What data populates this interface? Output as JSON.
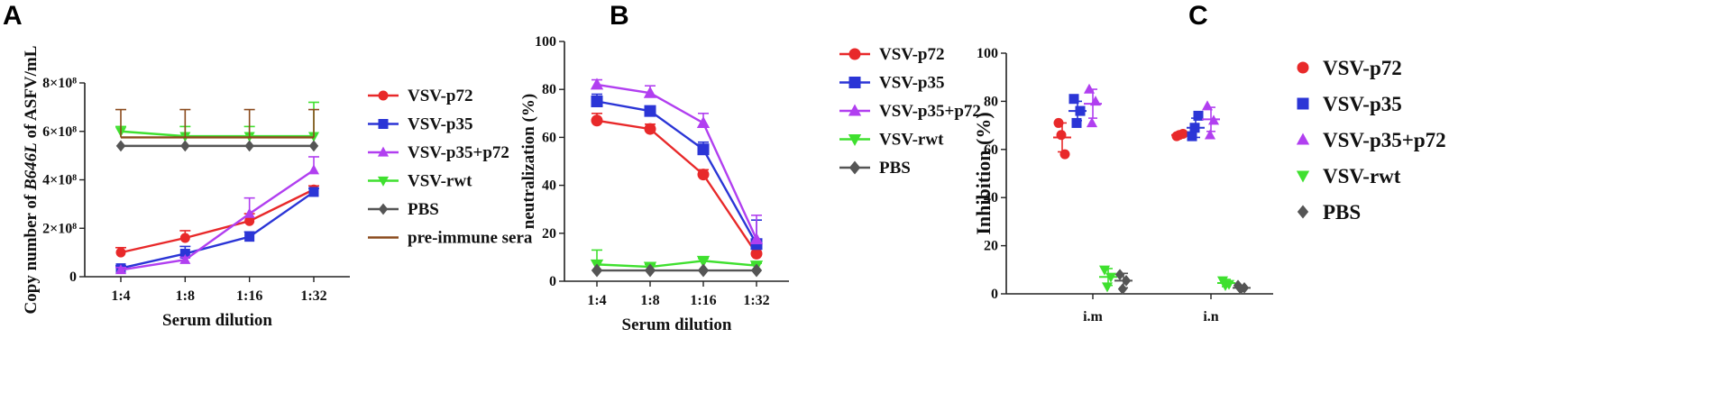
{
  "chart_data": [
    {
      "panel": "A",
      "type": "line",
      "title": "",
      "xlabel": "Serum dilution",
      "ylabel_parts": [
        "Copy number of ",
        "B646L",
        " of ASFV/mL"
      ],
      "categories": [
        "1:4",
        "1:8",
        "1:16",
        "1:32"
      ],
      "ylim": [
        0,
        800000000
      ],
      "yticks": [
        0,
        200000000,
        400000000,
        600000000,
        800000000
      ],
      "ytick_labels": [
        "0",
        "2×10⁸",
        "4×10⁸",
        "6×10⁸",
        "8×10⁸"
      ],
      "legend_position": "right",
      "series": [
        {
          "name": "VSV-p72",
          "color": "#e8292a",
          "marker": "circle",
          "values": [
            100000000,
            160000000,
            230000000,
            360000000
          ],
          "errors": [
            20000000,
            30000000,
            30000000,
            15000000
          ]
        },
        {
          "name": "VSV-p35",
          "color": "#2b35d6",
          "marker": "square",
          "values": [
            35000000,
            95000000,
            165000000,
            350000000
          ],
          "errors": [
            10000000,
            30000000,
            20000000,
            15000000
          ]
        },
        {
          "name": "VSV-p35+p72",
          "color": "#b13ff0",
          "marker": "triangle-up",
          "values": [
            28000000,
            70000000,
            260000000,
            440000000
          ],
          "errors": [
            10000000,
            10000000,
            65000000,
            55000000
          ]
        },
        {
          "name": "VSV-rwt",
          "color": "#3fe02f",
          "marker": "triangle-down",
          "values": [
            600000000,
            580000000,
            580000000,
            580000000
          ],
          "errors": [
            20000000,
            40000000,
            40000000,
            140000000
          ]
        },
        {
          "name": "PBS",
          "color": "#555555",
          "marker": "diamond",
          "values": [
            540000000,
            540000000,
            540000000,
            540000000
          ],
          "errors": [
            0,
            0,
            0,
            0
          ]
        },
        {
          "name": "pre-immune sera",
          "color": "#8a4a1c",
          "marker": "none",
          "values": [
            575000000,
            575000000,
            575000000,
            575000000
          ],
          "errors": [
            115000000,
            115000000,
            115000000,
            115000000
          ]
        }
      ]
    },
    {
      "panel": "B",
      "type": "line",
      "title": "",
      "xlabel": "Serum dilution",
      "ylabel": "neutralization (%)",
      "categories": [
        "1:4",
        "1:8",
        "1:16",
        "1:32"
      ],
      "ylim": [
        0,
        100
      ],
      "yticks": [
        0,
        20,
        40,
        60,
        80,
        100
      ],
      "ytick_labels": [
        "0",
        "20",
        "40",
        "60",
        "80",
        "100"
      ],
      "legend_position": "right",
      "series": [
        {
          "name": "VSV-p72",
          "color": "#e8292a",
          "marker": "circle",
          "values": [
            67,
            63.5,
            44.5,
            11.5
          ],
          "errors": [
            3,
            2,
            2,
            2
          ]
        },
        {
          "name": "VSV-p35",
          "color": "#2b35d6",
          "marker": "square",
          "values": [
            75,
            71,
            55,
            15.5
          ],
          "errors": [
            3,
            2,
            3,
            10
          ]
        },
        {
          "name": "VSV-p35+p72",
          "color": "#b13ff0",
          "marker": "triangle-up",
          "values": [
            82,
            78.5,
            66,
            17.5
          ],
          "errors": [
            2,
            3,
            4,
            10
          ]
        },
        {
          "name": "VSV-rwt",
          "color": "#3fe02f",
          "marker": "triangle-down",
          "values": [
            7,
            6,
            8.5,
            6.5
          ],
          "errors": [
            6,
            1,
            1,
            1
          ]
        },
        {
          "name": "PBS",
          "color": "#555555",
          "marker": "diamond",
          "values": [
            4.5,
            4.5,
            4.5,
            4.5
          ],
          "errors": [
            0,
            0,
            0,
            0
          ]
        }
      ]
    },
    {
      "panel": "C",
      "type": "scatter",
      "title": "",
      "xlabel": "",
      "ylabel": "Inhibition (%)",
      "categories": [
        "i.m",
        "i.n"
      ],
      "ylim": [
        0,
        100
      ],
      "yticks": [
        0,
        20,
        40,
        60,
        80,
        100
      ],
      "ytick_labels": [
        "0",
        "20",
        "40",
        "60",
        "80",
        "100"
      ],
      "legend_position": "right",
      "series": [
        {
          "name": "VSV-p72",
          "color": "#e8292a",
          "marker": "circle",
          "points": [
            [
              71,
              58,
              66
            ],
            [
              65.5,
              66.5,
              66
            ]
          ],
          "means": [
            65,
            66
          ],
          "sds": [
            6,
            0.5
          ]
        },
        {
          "name": "VSV-p35",
          "color": "#2b35d6",
          "marker": "square",
          "points": [
            [
              81,
              76,
              71
            ],
            [
              65.5,
              74,
              69
            ]
          ],
          "means": [
            76,
            69
          ],
          "sds": [
            4,
            4
          ]
        },
        {
          "name": "VSV-p35+p72",
          "color": "#b13ff0",
          "marker": "triangle-up",
          "points": [
            [
              85,
              80,
              71
            ],
            [
              78,
              72,
              66
            ]
          ],
          "means": [
            79,
            72.5
          ],
          "sds": [
            6,
            5
          ]
        },
        {
          "name": "VSV-rwt",
          "color": "#3fe02f",
          "marker": "triangle-down",
          "points": [
            [
              10,
              7,
              3
            ],
            [
              5.5,
              4,
              3.5
            ]
          ],
          "means": [
            7,
            4.5
          ],
          "sds": [
            3.5,
            1.5
          ]
        },
        {
          "name": "PBS",
          "color": "#555555",
          "marker": "diamond",
          "points": [
            [
              8,
              5.5,
              2
            ],
            [
              3.5,
              2.5,
              2
            ]
          ],
          "means": [
            5.5,
            2.5
          ],
          "sds": [
            3,
            0.7
          ]
        }
      ]
    }
  ]
}
